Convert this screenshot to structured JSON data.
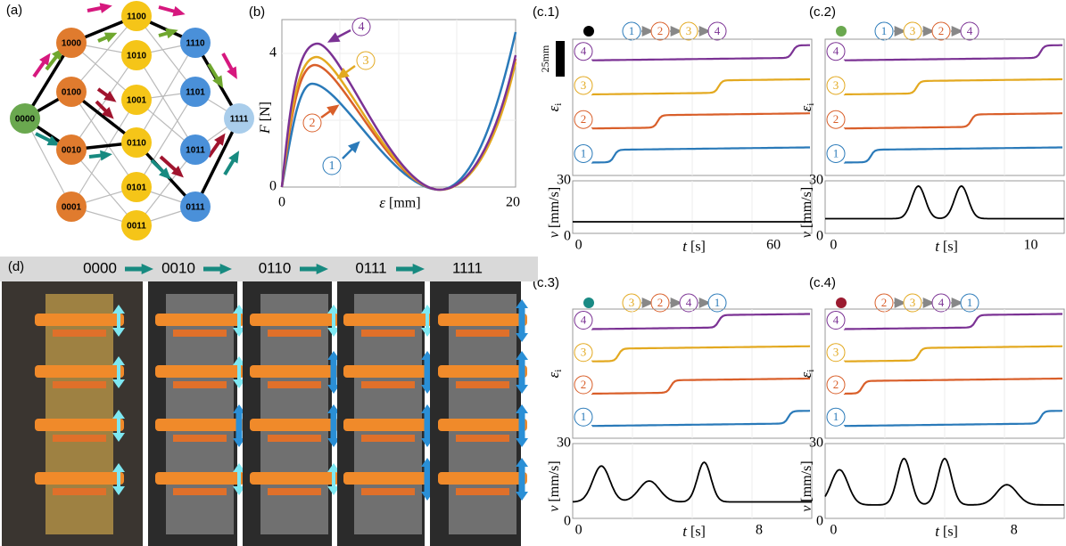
{
  "panel_a": {
    "label": "(a)",
    "nodes": [
      "0000",
      "1000",
      "0100",
      "0010",
      "0001",
      "1100",
      "1010",
      "1001",
      "0110",
      "0101",
      "0011",
      "1110",
      "1101",
      "1011",
      "0111",
      "1111"
    ]
  },
  "panel_b": {
    "label": "(b)",
    "y_label": "F",
    "y_unit": "[N]",
    "x_label": "ε",
    "x_unit": "[mm]",
    "x_ticks": [
      "0",
      "20"
    ],
    "y_ticks": [
      "0",
      "4"
    ],
    "curve_labels": [
      "1",
      "2",
      "3",
      "4"
    ]
  },
  "scale_bar": "25mm",
  "panels_c": [
    {
      "label": "(c.1)",
      "sequence": [
        "1",
        "2",
        "3",
        "4"
      ],
      "row_labels": [
        "4",
        "3",
        "2",
        "1"
      ],
      "strain_label": "ε",
      "strain_subscript": "i",
      "velocity_label": "v",
      "velocity_unit": "[mm/s]",
      "time_label": "t",
      "time_unit": "[s]",
      "v_ticks": [
        "0",
        "30"
      ],
      "t_ticks": [
        "0",
        "60"
      ]
    },
    {
      "label": "(c.2)",
      "sequence": [
        "1",
        "3",
        "2",
        "4"
      ],
      "row_labels": [
        "4",
        "3",
        "2",
        "1"
      ],
      "strain_label": "ε",
      "strain_subscript": "i",
      "velocity_label": "v",
      "velocity_unit": "[mm/s]",
      "time_label": "t",
      "time_unit": "[s]",
      "v_ticks": [
        "0",
        "30"
      ],
      "t_ticks": [
        "0",
        "10"
      ]
    },
    {
      "label": "(c.3)",
      "sequence": [
        "3",
        "2",
        "4",
        "1"
      ],
      "row_labels": [
        "4",
        "3",
        "2",
        "1"
      ],
      "strain_label": "ε",
      "strain_subscript": "i",
      "velocity_label": "v",
      "velocity_unit": "[mm/s]",
      "time_label": "t",
      "time_unit": "[s]",
      "v_ticks": [
        "0",
        "30"
      ],
      "t_ticks": [
        "0",
        "8"
      ]
    },
    {
      "label": "(c.4)",
      "sequence": [
        "2",
        "3",
        "4",
        "1"
      ],
      "row_labels": [
        "4",
        "3",
        "2",
        "1"
      ],
      "strain_label": "ε",
      "strain_subscript": "i",
      "velocity_label": "v",
      "velocity_unit": "[mm/s]",
      "time_label": "t",
      "time_unit": "[s]",
      "v_ticks": [
        "0",
        "30"
      ],
      "t_ticks": [
        "0",
        "8"
      ]
    }
  ],
  "panel_d": {
    "label": "(d)",
    "states": [
      "0000",
      "0010",
      "0110",
      "0111",
      "1111"
    ]
  }
}
